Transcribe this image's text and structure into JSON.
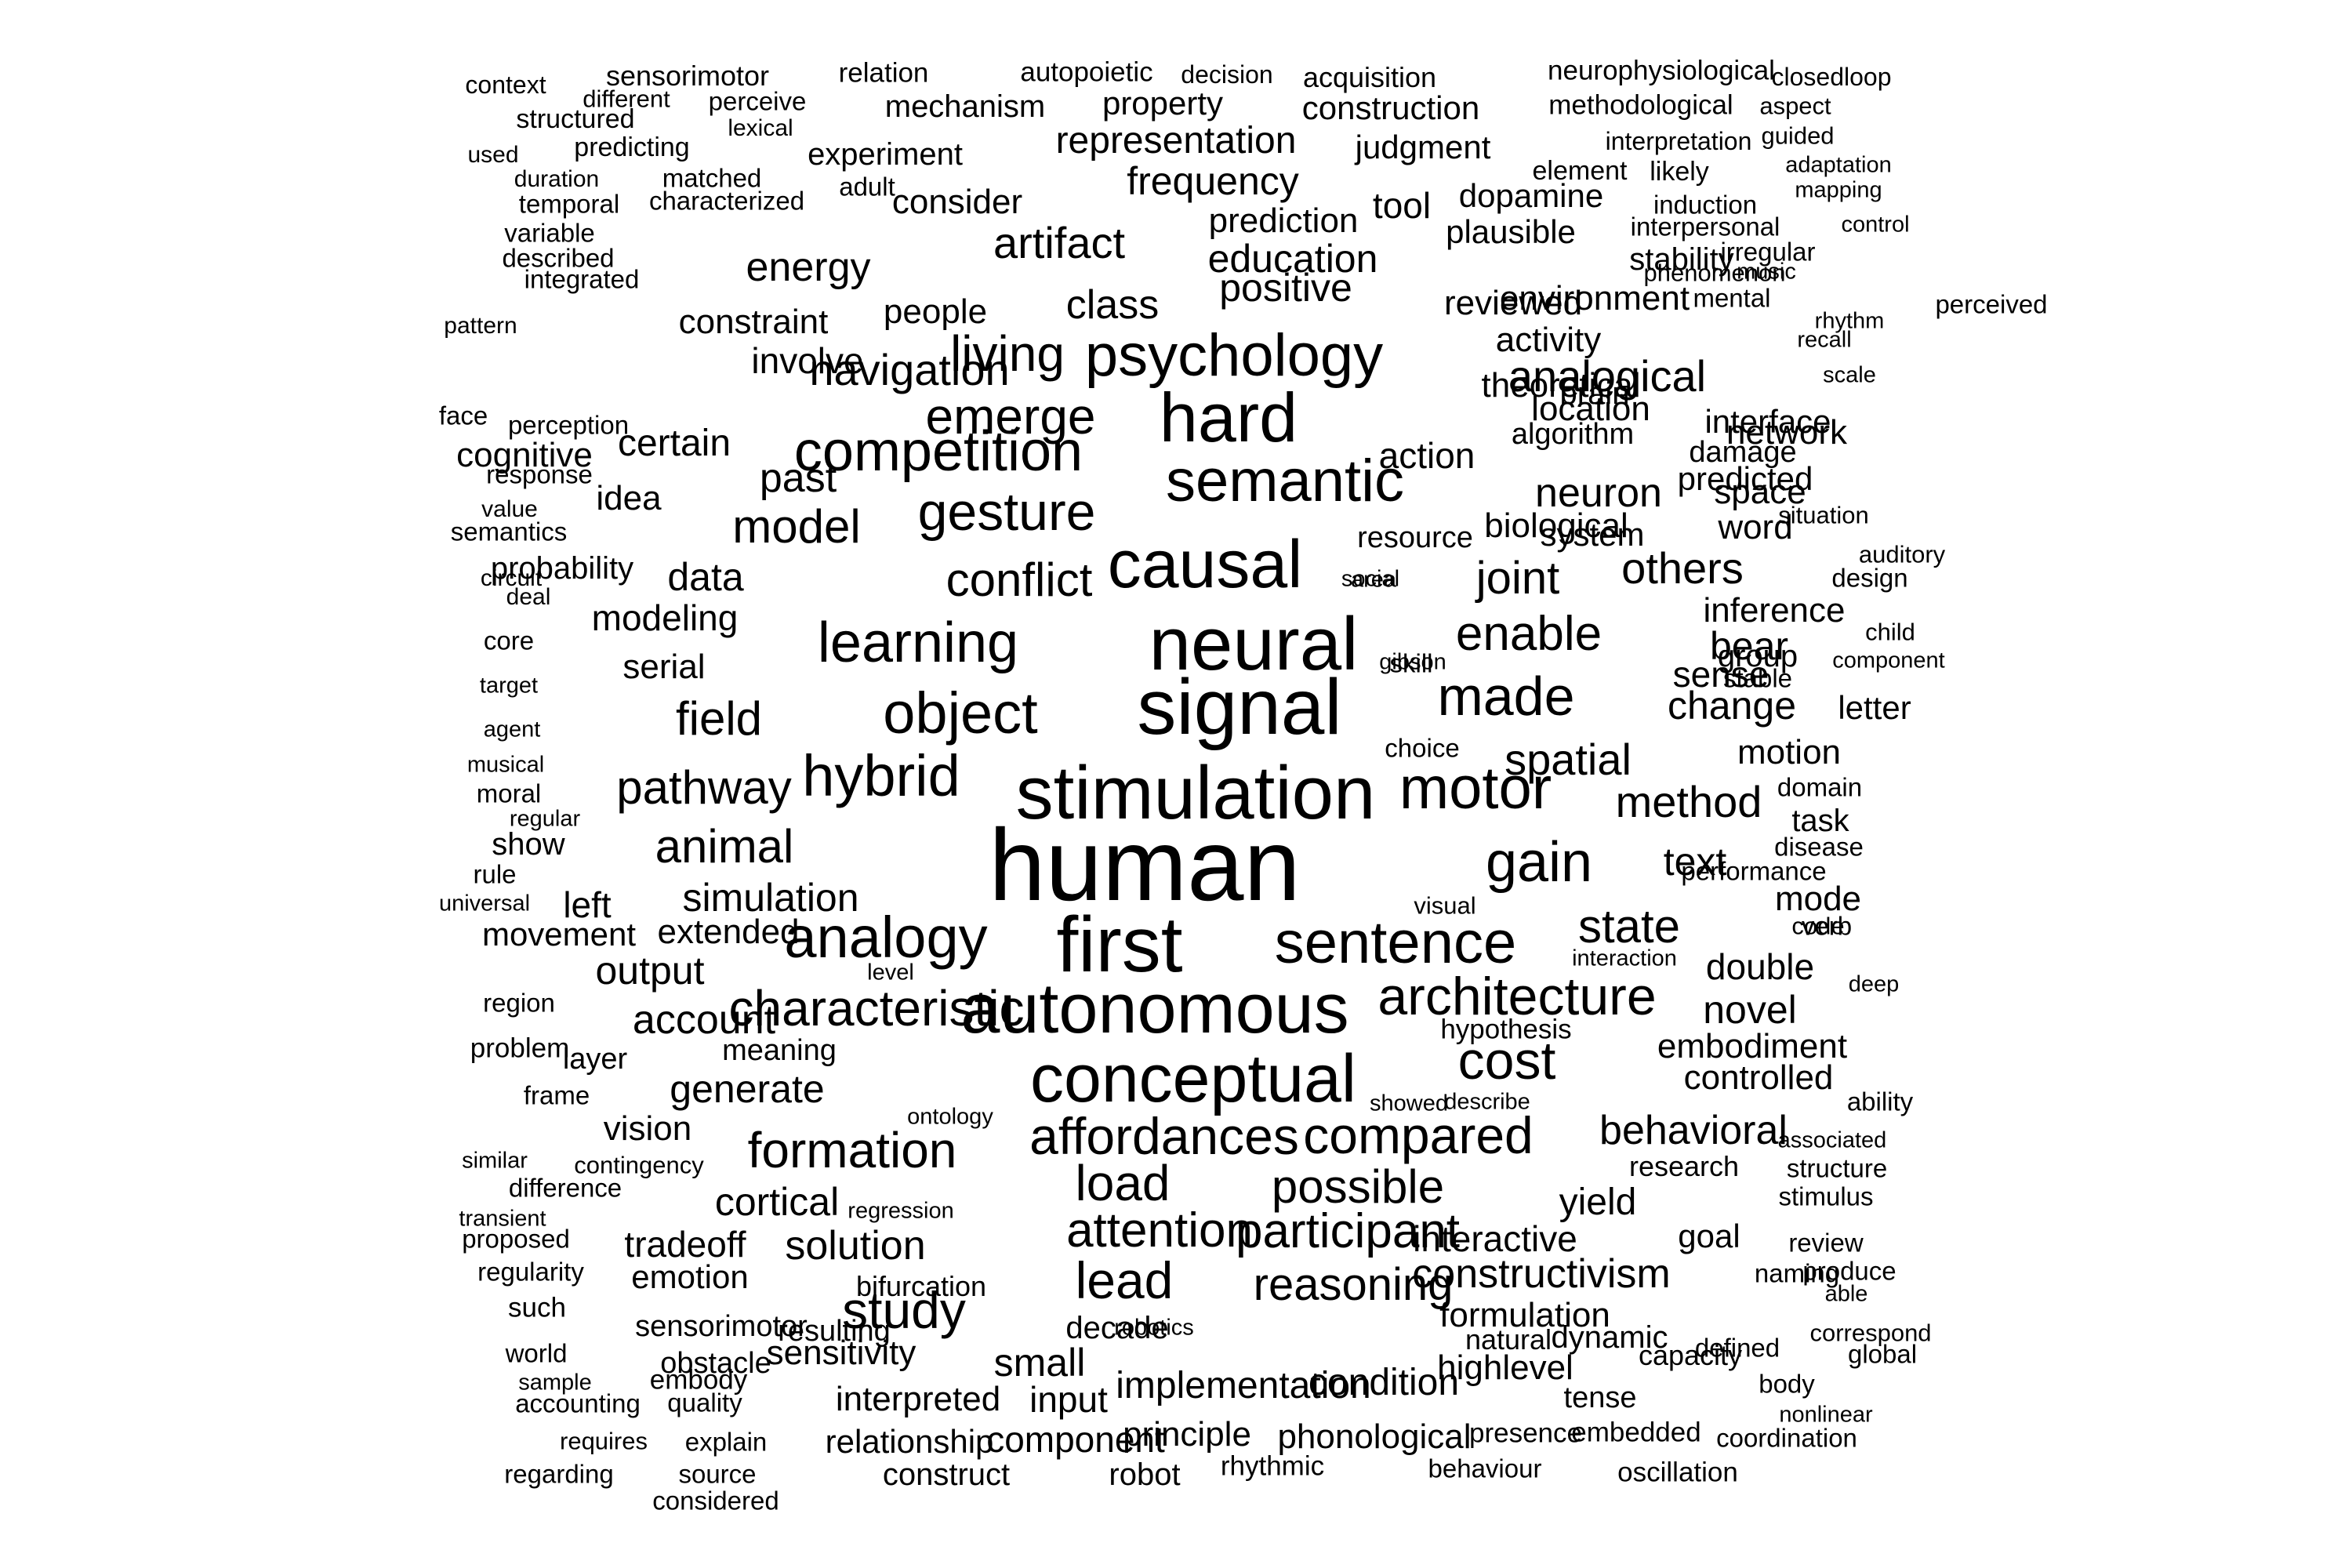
{
  "words": [
    "context",
    "sensorimotor",
    "relation",
    "autopoietic",
    "decision",
    "acquisition",
    "neurophysiological",
    "closedloop",
    "different",
    "perceive",
    "structured",
    "lexical",
    "mechanism",
    "property",
    "construction",
    "methodological",
    "aspect",
    "used",
    "predicting",
    "experiment",
    "representation",
    "judgment",
    "interpretation",
    "guided",
    "duration",
    "matched",
    "adult",
    "element",
    "likely",
    "adaptation",
    "temporal",
    "characterized",
    "frequency",
    "tool",
    "dopamine",
    "mapping",
    "induction",
    "consider",
    "prediction",
    "interpersonal",
    "control",
    "variable",
    "artifact",
    "plausible",
    "irregular",
    "stability",
    "education",
    "music",
    "described",
    "phenomenon",
    "energy",
    "integrated",
    "positive",
    "reviewed",
    "perceived",
    "environment",
    "mental",
    "pattern",
    "constraint",
    "people",
    "class",
    "activity",
    "involve",
    "living",
    "rhythm",
    "psychology",
    "analogical",
    "navigation",
    "location",
    "recall",
    "emerge",
    "theoretical",
    "brain",
    "interface",
    "scale",
    "face",
    "perception",
    "certain",
    "competition",
    "damage",
    "algorithm",
    "cognitive",
    "hard",
    "network",
    "response",
    "past",
    "action",
    "predicted",
    "gesture",
    "neuron",
    "semantic",
    "idea",
    "model",
    "space",
    "value",
    "situation",
    "biological",
    "semantics",
    "word",
    "resource",
    "system",
    "auditory",
    "probability",
    "others",
    "area",
    "design",
    "data",
    "joint",
    "social",
    "conflict",
    "circuit",
    "causal",
    "deal",
    "inference",
    "modeling",
    "learning",
    "neural",
    "enable",
    "core",
    "bear",
    "skill",
    "child",
    "serial",
    "group",
    "gibson",
    "component",
    "sense",
    "target",
    "stable",
    "made",
    "signal",
    "field",
    "change",
    "letter",
    "agent",
    "choice",
    "object",
    "spatial",
    "motion",
    "musical",
    "method",
    "moral",
    "hybrid",
    "motor",
    "domain",
    "pathway",
    "regular",
    "task",
    "show",
    "stimulation",
    "disease",
    "animal",
    "gain",
    "text",
    "rule",
    "simulation",
    "performance",
    "left",
    "universal",
    "visual",
    "mode",
    "human",
    "verb",
    "extended",
    "movement",
    "state",
    "code",
    "analogy",
    "first",
    "sentence",
    "output",
    "level",
    "interaction",
    "double",
    "characteristic",
    "architecture",
    "region",
    "deep",
    "account",
    "novel",
    "hypothesis",
    "autonomous",
    "problem",
    "meaning",
    "embodiment",
    "layer",
    "cost",
    "frame",
    "controlled",
    "generate",
    "conceptual",
    "ability",
    "showed",
    "describe",
    "ontology",
    "vision",
    "behavioral",
    "associated",
    "formation",
    "affordances",
    "compared",
    "similar",
    "contingency",
    "research",
    "structure",
    "load",
    "difference",
    "possible",
    "stimulus",
    "transient",
    "cortical",
    "regression",
    "yield",
    "proposed",
    "attention",
    "tradeoff",
    "participant",
    "goal",
    "review",
    "solution",
    "interactive",
    "regularity",
    "emotion",
    "naming",
    "produce",
    "lead",
    "constructivism",
    "reasoning",
    "bifurcation",
    "able",
    "such",
    "formulation",
    "study",
    "sensorimotor",
    "resulting",
    "defined",
    "decade",
    "robotics",
    "dynamic",
    "correspond",
    "world",
    "obstacle",
    "natural",
    "small",
    "sensitivity",
    "capacity",
    "global",
    "sample",
    "embody",
    "highlevel",
    "body",
    "implementation",
    "condition",
    "accounting",
    "quality",
    "interpreted",
    "input",
    "tense",
    "nonlinear",
    "requires",
    "explain",
    "relationship",
    "component",
    "principle",
    "phonological",
    "presence",
    "embedded",
    "coordination",
    "regarding",
    "source",
    "construct",
    "robot",
    "rhythmic",
    "behaviour",
    "oscillation",
    "considered"
  ]
}
